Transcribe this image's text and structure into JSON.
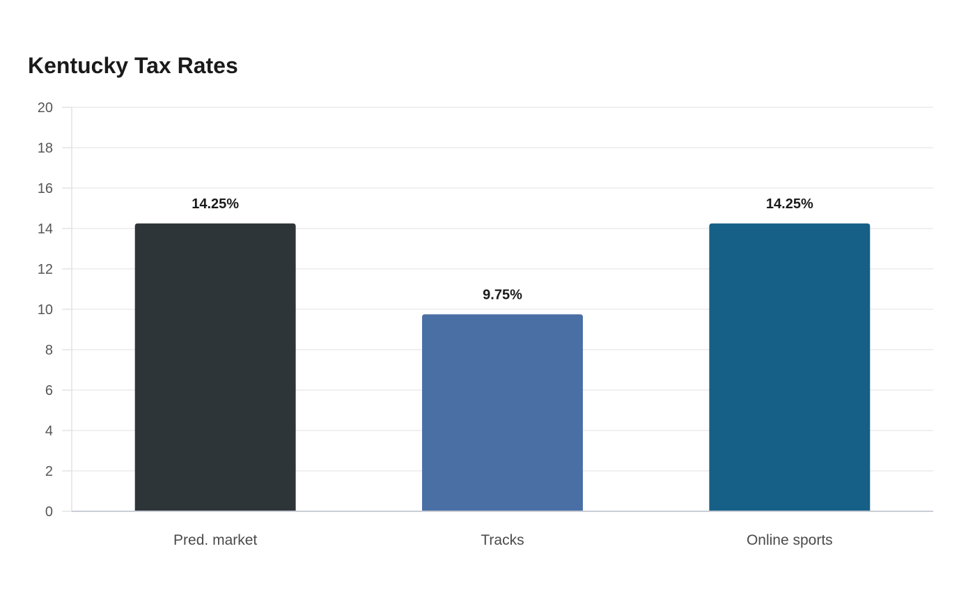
{
  "chart_data": {
    "type": "bar",
    "title": "Kentucky Tax Rates",
    "xlabel": "",
    "ylabel": "",
    "categories": [
      "Pred. market",
      "Tracks",
      "Online sports"
    ],
    "values": [
      14.25,
      9.75,
      14.25
    ],
    "data_labels": [
      "14.25%",
      "9.75%",
      "14.25%"
    ],
    "colors": [
      "#2e3538",
      "#4a6fa5",
      "#166088"
    ],
    "ylim": [
      0,
      20
    ],
    "yticks": [
      0,
      2,
      4,
      6,
      8,
      10,
      12,
      14,
      16,
      18,
      20
    ],
    "grid": true,
    "legend": "none"
  }
}
